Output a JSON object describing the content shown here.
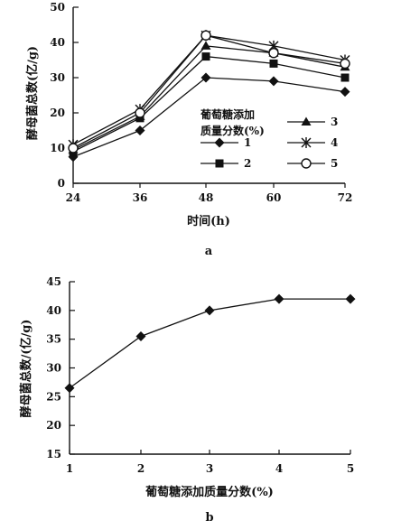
{
  "chart_data": [
    {
      "type": "line",
      "panel_label": "a",
      "xlabel": "时间(h)",
      "ylabel": "酵母菌总数(亿/g)",
      "x": [
        24,
        36,
        48,
        60,
        72
      ],
      "x_ticks": [
        "24",
        "36",
        "48",
        "60",
        "72"
      ],
      "ylim": [
        0,
        50
      ],
      "y_ticks": [
        "0",
        "10",
        "20",
        "30",
        "40",
        "50"
      ],
      "legend_title": [
        "葡萄糖添加",
        "质量分数(%)"
      ],
      "legend_placement": "lower-right",
      "grid": false,
      "series": [
        {
          "name": "1",
          "marker": "diamond-filled",
          "values": [
            7.5,
            15,
            30,
            29,
            26
          ]
        },
        {
          "name": "2",
          "marker": "square-filled",
          "values": [
            9,
            18.5,
            36,
            34,
            30
          ]
        },
        {
          "name": "3",
          "marker": "triangle-filled",
          "values": [
            9.5,
            19,
            39,
            37,
            33
          ]
        },
        {
          "name": "4",
          "marker": "star-cross",
          "values": [
            11,
            21,
            42,
            39,
            35
          ]
        },
        {
          "name": "5",
          "marker": "circle-open",
          "values": [
            10,
            20,
            42,
            37,
            34
          ]
        }
      ]
    },
    {
      "type": "line",
      "panel_label": "b",
      "xlabel": "葡萄糖添加质量分数(%)",
      "ylabel": "酵母菌总数/(亿/g)",
      "x": [
        1,
        2,
        3,
        4,
        5
      ],
      "x_ticks": [
        "1",
        "2",
        "3",
        "4",
        "5"
      ],
      "ylim": [
        15,
        45
      ],
      "y_ticks": [
        "15",
        "20",
        "25",
        "30",
        "35",
        "40",
        "45"
      ],
      "grid": false,
      "series": [
        {
          "marker": "diamond-filled",
          "values": [
            26.5,
            35.5,
            40,
            42,
            42
          ]
        }
      ]
    }
  ]
}
